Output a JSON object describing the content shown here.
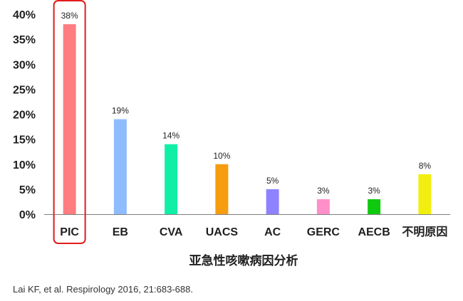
{
  "chart_data": {
    "type": "bar",
    "categories": [
      "PIC",
      "EB",
      "CVA",
      "UACS",
      "AC",
      "GERC",
      "AECB",
      "不明原因"
    ],
    "values": [
      38,
      19,
      14,
      10,
      5,
      3,
      3,
      8
    ],
    "data_labels": [
      "38%",
      "19%",
      "14%",
      "10%",
      "5%",
      "3%",
      "3%",
      "8%"
    ],
    "colors": [
      "#ff7c80",
      "#8fbcff",
      "#11efa6",
      "#f59c0f",
      "#8f82ff",
      "#ff8fc8",
      "#0fc90f",
      "#f2ef10"
    ],
    "ylim": [
      0,
      40
    ],
    "yticks": [
      0,
      5,
      10,
      15,
      20,
      25,
      30,
      35,
      40
    ],
    "ytick_labels": [
      "0%",
      "5%",
      "10%",
      "15%",
      "20%",
      "25%",
      "30%",
      "35%",
      "40%"
    ],
    "xlabel": "亚急性咳嗽病因分析",
    "ylabel": "",
    "grid": false,
    "highlight": {
      "category": "PIC",
      "color": "#e31b1b"
    }
  },
  "citation": "Lai KF, et al. Respirology 2016, 21:683-688."
}
